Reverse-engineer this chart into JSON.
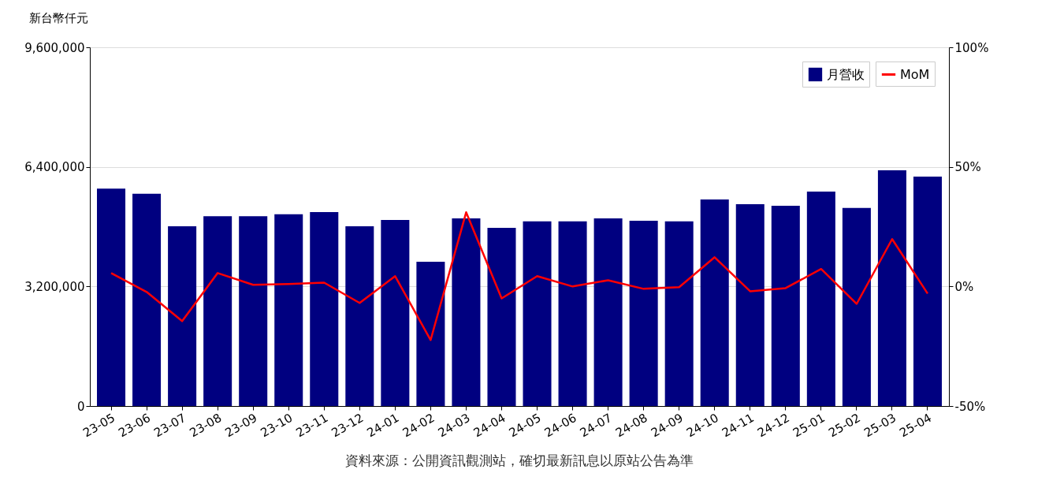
{
  "chart_data": {
    "type": "bar",
    "ylabel": "新台幣仟元",
    "categories": [
      "23-05",
      "23-06",
      "23-07",
      "23-08",
      "23-09",
      "23-10",
      "23-11",
      "23-12",
      "24-01",
      "24-02",
      "24-03",
      "24-04",
      "24-05",
      "24-06",
      "24-07",
      "24-08",
      "24-09",
      "24-10",
      "24-11",
      "24-12",
      "25-01",
      "25-02",
      "25-03",
      "25-04"
    ],
    "series": [
      {
        "name": "月營收",
        "color": "#000080",
        "values": [
          5820000,
          5680000,
          4810000,
          5080000,
          5080000,
          5130000,
          5190000,
          4810000,
          4980000,
          3860000,
          5020000,
          4770000,
          4940000,
          4940000,
          5020000,
          4960000,
          4940000,
          5530000,
          5400000,
          5360000,
          5740000,
          5300000,
          6310000,
          6140000
        ]
      },
      {
        "name": "MoM",
        "type": "line",
        "axis": "y2",
        "color": "#ff0000",
        "values": [
          5.6,
          -2.3,
          -14.5,
          5.6,
          0.7,
          1.0,
          1.6,
          -6.9,
          4.3,
          -22.4,
          31.0,
          -5.0,
          4.3,
          0.0,
          2.6,
          -1.0,
          -0.3,
          12.2,
          -2.0,
          -0.7,
          7.3,
          -7.3,
          19.8,
          -3.0
        ]
      }
    ],
    "ylim": [
      0,
      9600000
    ],
    "yticks": [
      0,
      {
        "value": 3200000,
        "label": "3,200,000"
      },
      {
        "value": 6400000,
        "label": "6,400,000"
      },
      {
        "value": 9600000,
        "label": "9,600,000"
      }
    ],
    "y2lim": [
      -50,
      100
    ],
    "y2ticks": [
      {
        "value": -50,
        "label": "-50%"
      },
      {
        "value": 0,
        "label": "0%"
      },
      {
        "value": 50,
        "label": "50%"
      },
      {
        "value": 100,
        "label": "100%"
      }
    ],
    "grid": "y",
    "legend": "top right",
    "annotations": [
      "資料來源：公開資訊觀測站，確切最新訊息以原站公告為準"
    ]
  }
}
